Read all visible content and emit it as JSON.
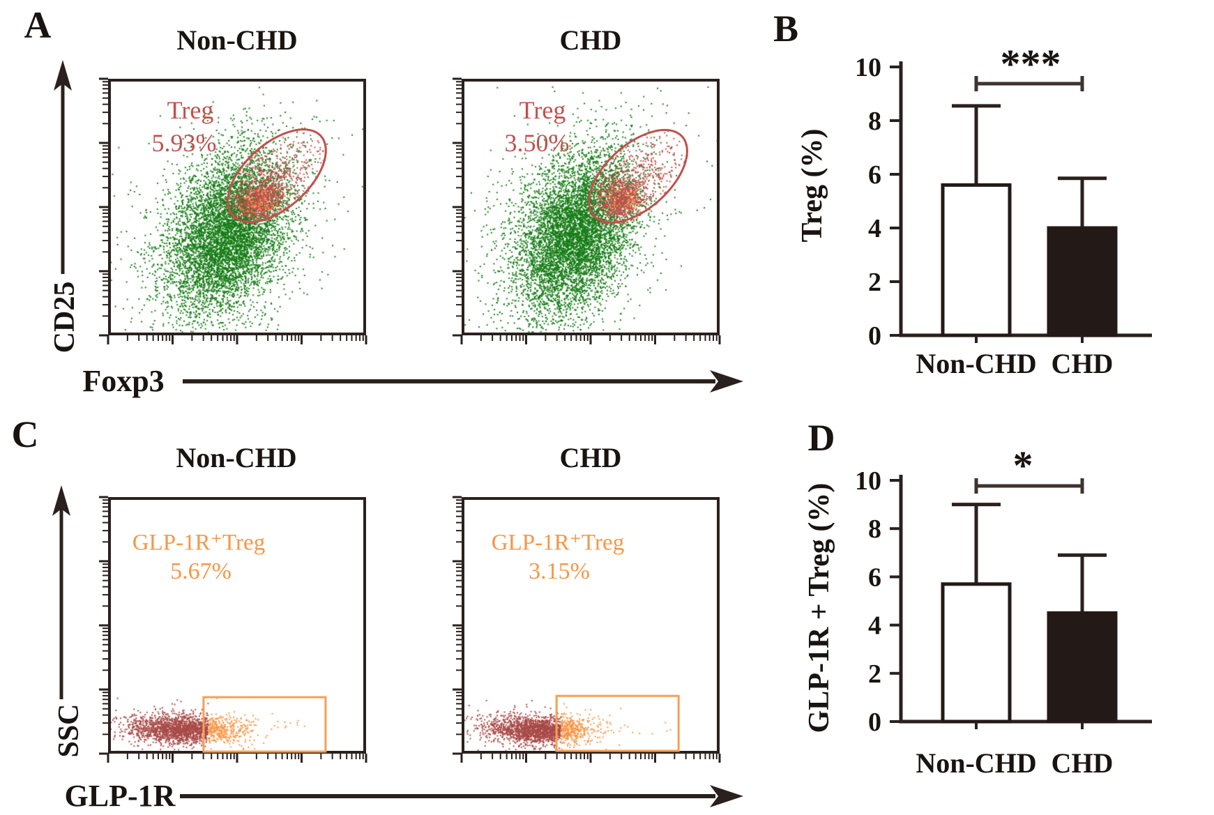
{
  "colors": {
    "green": "#167d16",
    "red": "#c0504d",
    "maroon": "#a84a47",
    "orange": "#f79646",
    "gate_orange": "#f5a054",
    "axis": "#2a201d",
    "bar_dark": "#231916",
    "bar_white": "#ffffff",
    "bracket": "#3f3330"
  },
  "chart_data": [
    {
      "panel": "A",
      "type": "scatter",
      "subtype": "flow_cytometry_dot_plot",
      "xlabel": "Foxp3",
      "ylabel": "CD25",
      "x_scale": "log",
      "y_scale": "log",
      "plots": [
        {
          "title": "Non-CHD",
          "gate": {
            "shape": "ellipse",
            "label": "Treg",
            "value_text": "5.93%",
            "value_pct": 5.93,
            "cx": 0.654,
            "cy": 0.378,
            "rx": 0.23,
            "ry": 0.125,
            "rot_deg": -42
          },
          "clusters": [
            {
              "color": "green",
              "n": 6200,
              "cx": 0.465,
              "cy": 0.6,
              "sx": 0.115,
              "sy": 0.155,
              "corr": -0.35
            },
            {
              "color": "green",
              "n": 800,
              "cx": 0.45,
              "cy": 0.575,
              "sx": 0.205,
              "sy": 0.235,
              "corr": -0.3
            },
            {
              "color": "red",
              "n": 620,
              "cx": 0.638,
              "cy": 0.39,
              "sx": 0.115,
              "sy": 0.1,
              "corr": -0.5,
              "clip": 1.0
            },
            {
              "color": "red",
              "n": 720,
              "cx": 0.581,
              "cy": 0.474,
              "sx": 0.045,
              "sy": 0.04,
              "corr": -0.2,
              "clip": 1.15
            },
            {
              "color": "orange",
              "n": 90,
              "cx": 0.579,
              "cy": 0.479,
              "sx": 0.04,
              "sy": 0.032,
              "corr": 0,
              "clip": 1.15
            }
          ]
        },
        {
          "title": "CHD",
          "gate": {
            "shape": "ellipse",
            "label": "Treg",
            "value_text": "3.50%",
            "value_pct": 3.5,
            "cx": 0.684,
            "cy": 0.38,
            "rx": 0.23,
            "ry": 0.125,
            "rot_deg": -42
          },
          "clusters": [
            {
              "color": "green",
              "n": 6200,
              "cx": 0.44,
              "cy": 0.6,
              "sx": 0.115,
              "sy": 0.155,
              "corr": -0.35
            },
            {
              "color": "green",
              "n": 800,
              "cx": 0.43,
              "cy": 0.58,
              "sx": 0.205,
              "sy": 0.235,
              "corr": -0.3
            },
            {
              "color": "red",
              "n": 540,
              "cx": 0.67,
              "cy": 0.4,
              "sx": 0.11,
              "sy": 0.1,
              "corr": -0.5,
              "clip": 1.0
            },
            {
              "color": "red",
              "n": 700,
              "cx": 0.616,
              "cy": 0.467,
              "sx": 0.043,
              "sy": 0.04,
              "corr": -0.2,
              "clip": 1.15
            },
            {
              "color": "orange",
              "n": 80,
              "cx": 0.615,
              "cy": 0.471,
              "sx": 0.038,
              "sy": 0.03,
              "corr": 0,
              "clip": 1.15
            }
          ]
        }
      ]
    },
    {
      "panel": "B",
      "type": "bar",
      "ylabel": "Treg (%)",
      "categories": [
        "Non-CHD",
        "CHD"
      ],
      "values": [
        5.6,
        4.0
      ],
      "errors_upper": [
        2.95,
        1.85
      ],
      "ylim": [
        0,
        10
      ],
      "yticks": [
        0,
        2,
        4,
        6,
        8,
        10
      ],
      "significance": "***",
      "bar_fills": [
        "#ffffff",
        "#231916"
      ],
      "legend": "none",
      "grid": "off"
    },
    {
      "panel": "C",
      "type": "scatter",
      "subtype": "flow_cytometry_dot_plot",
      "xlabel": "GLP-1R",
      "ylabel": "SSC",
      "x_scale": "log",
      "y_scale": "linear",
      "plots": [
        {
          "title": "Non-CHD",
          "gate": {
            "shape": "rect",
            "label": "GLP-1R⁺Treg",
            "value_text": "5.67%",
            "value_pct": 5.67,
            "x0": 0.37,
            "y0": 0.78,
            "x1": 0.843,
            "y1": 0.992
          },
          "clusters": [
            {
              "color": "maroon",
              "n": 1700,
              "cx": 0.29,
              "cy": 0.902,
              "sx": 0.105,
              "sy": 0.027,
              "corr": 0.1,
              "recolor_beyond_x": 0.385
            },
            {
              "color": "maroon",
              "n": 350,
              "cx": 0.27,
              "cy": 0.898,
              "sx": 0.16,
              "sy": 0.045,
              "corr": 0.08,
              "recolor_beyond_x": 0.385
            },
            {
              "color": "orange",
              "n": 16,
              "cx": 0.6,
              "cy": 0.886,
              "sx": 0.145,
              "sy": 0.02,
              "corr": 0
            }
          ]
        },
        {
          "title": "CHD",
          "gate": {
            "shape": "rect",
            "label": "GLP-1R⁺Treg",
            "value_text": "3.15%",
            "value_pct": 3.15,
            "x0": 0.368,
            "y0": 0.775,
            "x1": 0.841,
            "y1": 0.989
          },
          "clusters": [
            {
              "color": "maroon",
              "n": 1650,
              "cx": 0.295,
              "cy": 0.905,
              "sx": 0.1,
              "sy": 0.026,
              "corr": 0.1,
              "recolor_beyond_x": 0.382
            },
            {
              "color": "maroon",
              "n": 330,
              "cx": 0.275,
              "cy": 0.9,
              "sx": 0.155,
              "sy": 0.044,
              "corr": 0.08,
              "recolor_beyond_x": 0.382
            },
            {
              "color": "orange",
              "n": 13,
              "cx": 0.63,
              "cy": 0.888,
              "sx": 0.13,
              "sy": 0.02,
              "corr": 0
            }
          ]
        }
      ]
    },
    {
      "panel": "D",
      "type": "bar",
      "ylabel": "GLP-1R + Treg (%)",
      "categories": [
        "Non-CHD",
        "CHD"
      ],
      "values": [
        5.7,
        4.5
      ],
      "errors_upper": [
        3.3,
        2.4
      ],
      "ylim": [
        0,
        10
      ],
      "yticks": [
        0,
        2,
        4,
        6,
        8,
        10
      ],
      "significance": "*",
      "bar_fills": [
        "#ffffff",
        "#231916"
      ],
      "legend": "none",
      "grid": "off"
    }
  ]
}
